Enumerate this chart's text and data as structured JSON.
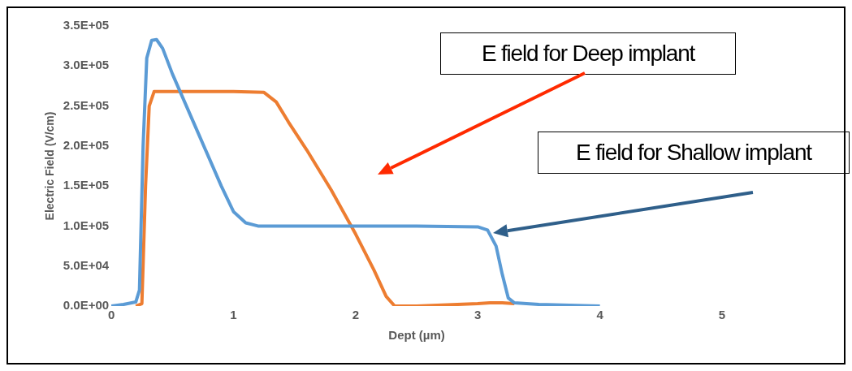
{
  "chart_data": {
    "type": "line",
    "xlabel": "Dept (µm)",
    "ylabel": "Electric Field (V/cm)",
    "xlim": [
      0,
      5
    ],
    "xticks": [
      0,
      1,
      2,
      3,
      4,
      5
    ],
    "ylim": [
      0,
      350000
    ],
    "yticks": [
      {
        "value": 0,
        "label": "0.0E+00"
      },
      {
        "value": 50000,
        "label": "5.0E+04"
      },
      {
        "value": 100000,
        "label": "1.0E+05"
      },
      {
        "value": 150000,
        "label": "1.5E+05"
      },
      {
        "value": 200000,
        "label": "2.0E+05"
      },
      {
        "value": 250000,
        "label": "2.5E+05"
      },
      {
        "value": 300000,
        "label": "3.0E+05"
      },
      {
        "value": 350000,
        "label": "3.5E+05"
      }
    ],
    "grid": false,
    "legend": false,
    "marker": "none",
    "line_style": "solid",
    "series": [
      {
        "color": "#5b9bd5",
        "x": [
          0,
          0.1,
          0.2,
          0.23,
          0.26,
          0.29,
          0.33,
          0.37,
          0.42,
          0.5,
          0.6,
          0.7,
          0.8,
          0.9,
          1.0,
          1.1,
          1.2,
          1.5,
          2.0,
          2.5,
          3.0,
          3.08,
          3.15,
          3.2,
          3.25,
          3.3,
          3.5,
          4.0
        ],
        "values": [
          0,
          2000,
          5000,
          20000,
          200000,
          310000,
          332000,
          333000,
          322000,
          290000,
          255000,
          220000,
          185000,
          150000,
          118000,
          104000,
          100000,
          100000,
          100000,
          100000,
          99000,
          95000,
          75000,
          40000,
          10000,
          4000,
          2000,
          0
        ]
      },
      {
        "color": "#ed7d31",
        "x": [
          0.2,
          0.25,
          0.28,
          0.31,
          0.35,
          0.5,
          1.0,
          1.25,
          1.35,
          1.45,
          1.6,
          1.8,
          2.0,
          2.15,
          2.25,
          2.32,
          2.5,
          3.0,
          3.1,
          3.2,
          3.3
        ],
        "values": [
          0,
          3000,
          150000,
          250000,
          268000,
          268000,
          268000,
          267000,
          255000,
          230000,
          195000,
          145000,
          90000,
          45000,
          12000,
          0,
          0,
          3000,
          4000,
          4000,
          3000
        ]
      }
    ],
    "annotations": [
      "E field for Deep implant",
      "E field for Shallow implant"
    ]
  }
}
